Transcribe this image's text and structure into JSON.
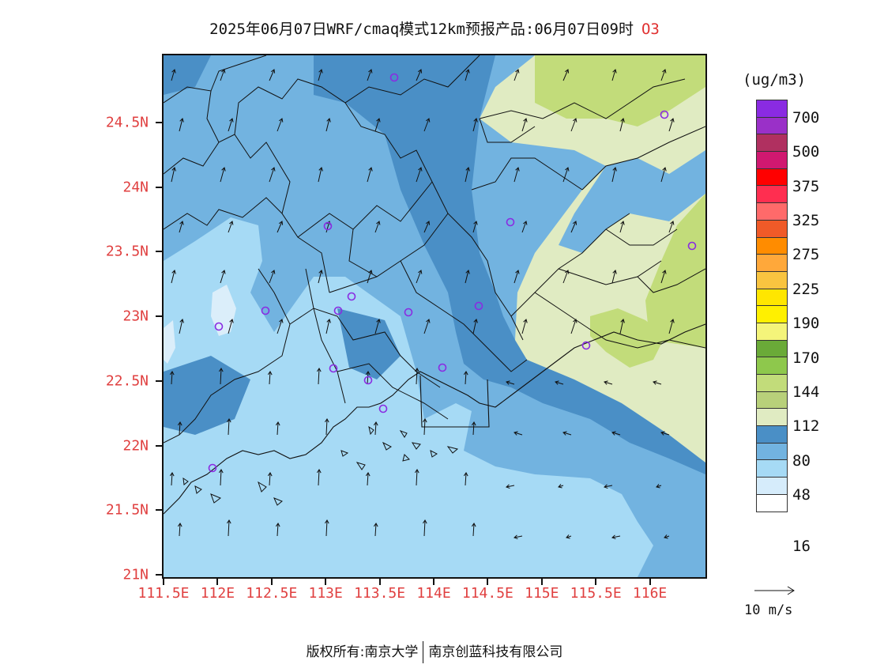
{
  "header": {
    "title": "2025年06月07日WRF/cmaq模式12km预报产品:06月07日09时",
    "species": "O3"
  },
  "map": {
    "lat_labels": [
      "24.5N",
      "24N",
      "23.5N",
      "23N",
      "22.5N",
      "22N",
      "21.5N",
      "21N"
    ],
    "lon_labels": [
      "111.5E",
      "112E",
      "112.5E",
      "113E",
      "113.5E",
      "114E",
      "114.5E",
      "115E",
      "115.5E",
      "116E"
    ],
    "palette": {
      "lightest": "#dbeefa",
      "light": "#a6daf5",
      "medium": "#72b3e0",
      "dark": "#4a8fc6",
      "pale_green": "#e0ebc2",
      "green": "#c2dc7a",
      "border": "#111111",
      "station": "#8a2be2"
    }
  },
  "legend": {
    "unit": "(ug/m3)",
    "colors": [
      "#8a2be2",
      "#9a30c8",
      "#b03060",
      "#d01870",
      "#ff0000",
      "#ff2e50",
      "#ff6a6a",
      "#f05a28",
      "#ff8c00",
      "#ffa83a",
      "#f9c440",
      "#ffe600",
      "#fff000",
      "#f4f47a",
      "#6aaa38",
      "#8ec84c",
      "#c2dc7a",
      "#b8d07a",
      "#e0ebc2",
      "#4a8fc6",
      "#72b3e0",
      "#a6daf5",
      "#d6ecfb",
      "#ffffff"
    ],
    "labels": [
      "700",
      "500",
      "375",
      "325",
      "275",
      "225",
      "190",
      "170",
      "144",
      "112",
      "80",
      "48",
      "16"
    ],
    "reference": "10 m/s"
  },
  "footer": {
    "copyright": "版权所有:南京大学",
    "company": "南京创蓝科技有限公司"
  }
}
